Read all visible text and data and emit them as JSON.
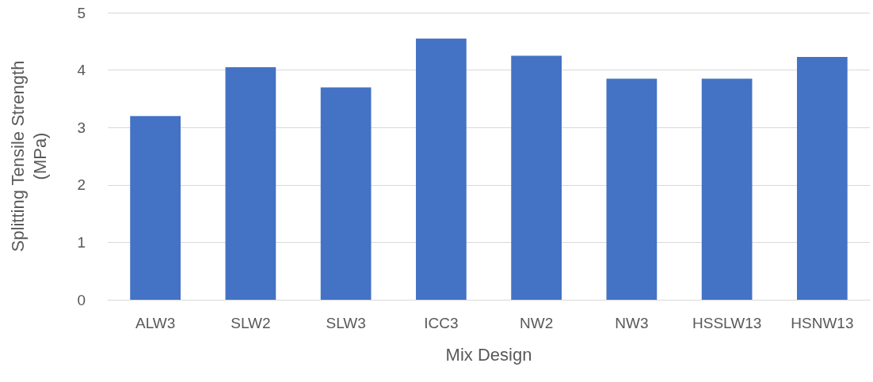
{
  "chart_data": {
    "type": "bar",
    "xlabel": "Mix Design",
    "ylabel": "Splitting Tensile Strength (MPa)",
    "categories": [
      "ALW3",
      "SLW2",
      "SLW3",
      "ICC3",
      "NW2",
      "NW3",
      "HSSLW13",
      "HSNW13"
    ],
    "values": [
      3.2,
      4.05,
      3.7,
      4.55,
      4.25,
      3.85,
      3.85,
      4.23
    ],
    "color": "#4472c4",
    "ylim": [
      0,
      5
    ],
    "yticks": [
      0,
      1,
      2,
      3,
      4,
      5
    ],
    "grid": "y"
  }
}
